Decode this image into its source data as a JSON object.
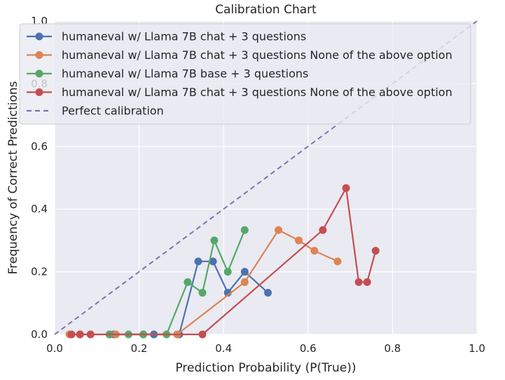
{
  "chart_data": {
    "type": "line",
    "title": "Calibration Chart",
    "xlabel": "Prediction Probability (P(True))",
    "ylabel": "Frequency of Correct Predictions",
    "xlim": [
      0.0,
      1.0
    ],
    "ylim": [
      0.0,
      1.0
    ],
    "x_ticks": [
      "0.0",
      "0.2",
      "0.4",
      "0.6",
      "0.8",
      "1.0"
    ],
    "y_ticks": [
      "0.0",
      "0.2",
      "0.4",
      "0.6",
      "0.8",
      "1.0"
    ],
    "grid": true,
    "legend_position": "top-left",
    "series": [
      {
        "name": "humaneval w/ Llama 7B chat + 3 questions",
        "color": "#4c72b0",
        "marker": "circle",
        "x": [
          0.13,
          0.14,
          0.21,
          0.235,
          0.295,
          0.34,
          0.375,
          0.41,
          0.45,
          0.505
        ],
        "y": [
          0.0,
          0.0,
          0.0,
          0.0,
          0.0,
          0.233,
          0.233,
          0.133,
          0.2,
          0.133
        ]
      },
      {
        "name": "humaneval w/ Llama 7B chat + 3 questions None of the above option",
        "color": "#dd8452",
        "marker": "circle",
        "x": [
          0.035,
          0.06,
          0.085,
          0.13,
          0.145,
          0.29,
          0.45,
          0.53,
          0.578,
          0.615,
          0.67
        ],
        "y": [
          0.0,
          0.0,
          0.0,
          0.0,
          0.0,
          0.0,
          0.167,
          0.333,
          0.3,
          0.267,
          0.233
        ]
      },
      {
        "name": "humaneval w/ Llama 7B base + 3 questions",
        "color": "#55a868",
        "marker": "circle",
        "x": [
          0.13,
          0.175,
          0.21,
          0.265,
          0.315,
          0.35,
          0.378,
          0.41,
          0.45
        ],
        "y": [
          0.0,
          0.0,
          0.0,
          0.0,
          0.167,
          0.133,
          0.3,
          0.2,
          0.333
        ]
      },
      {
        "name": "humaneval w/ Llama 7B chat + 3 questions None of the above option",
        "color": "#c44e52",
        "marker": "circle",
        "x": [
          0.04,
          0.06,
          0.085,
          0.35,
          0.635,
          0.69,
          0.72,
          0.74,
          0.76
        ],
        "y": [
          0.0,
          0.0,
          0.0,
          0.0,
          0.333,
          0.467,
          0.167,
          0.167,
          0.267
        ]
      }
    ],
    "reference_line": {
      "name": "Perfect calibration",
      "color": "#8172b3",
      "style": "dashed",
      "x": [
        0.0,
        1.0
      ],
      "y": [
        0.0,
        1.0
      ]
    }
  }
}
